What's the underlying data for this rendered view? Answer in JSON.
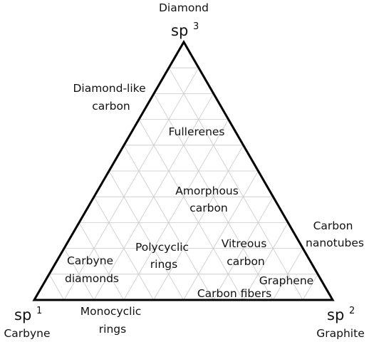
{
  "colors": {
    "outline": "#000000",
    "grid": "#c8c8c8",
    "text": "#111111",
    "background": "#ffffff"
  },
  "grid_divisions": 10,
  "vertices": {
    "top": {
      "label": "Diamond",
      "hybrid": "sp",
      "exponent": "3"
    },
    "left": {
      "label": "Carbyne",
      "hybrid": "sp",
      "exponent": "1"
    },
    "right": {
      "label": "Graphite",
      "hybrid": "sp",
      "exponent": "2"
    }
  },
  "regions": [
    {
      "id": "diamond-like-carbon",
      "lines": [
        "Diamond-like",
        "carbon"
      ]
    },
    {
      "id": "fullerenes",
      "lines": [
        "Fullerenes"
      ]
    },
    {
      "id": "amorphous-carbon",
      "lines": [
        "Amorphous",
        "carbon"
      ]
    },
    {
      "id": "carbon-nanotubes",
      "lines": [
        "Carbon",
        "nanotubes"
      ]
    },
    {
      "id": "polycyclic-rings",
      "lines": [
        "Polycyclic",
        "rings"
      ]
    },
    {
      "id": "vitreous-carbon",
      "lines": [
        "Vitreous",
        "carbon"
      ]
    },
    {
      "id": "carbyne-diamonds",
      "lines": [
        "Carbyne",
        "diamonds"
      ]
    },
    {
      "id": "graphene",
      "lines": [
        "Graphene"
      ]
    },
    {
      "id": "carbon-fibers",
      "lines": [
        "Carbon fibers"
      ]
    },
    {
      "id": "monocyclic-rings",
      "lines": [
        "Monocyclic",
        "rings"
      ]
    }
  ]
}
